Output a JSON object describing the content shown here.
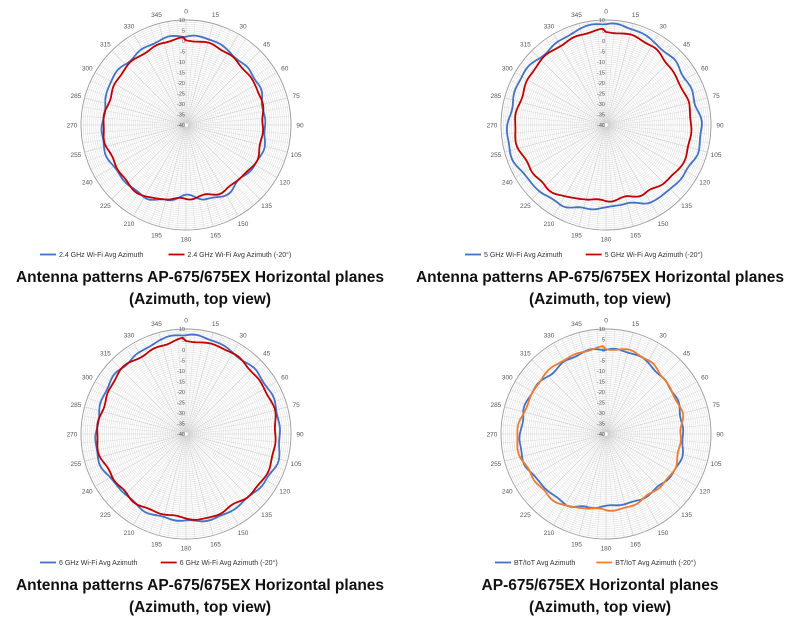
{
  "chart_data": [
    {
      "type": "polar-line",
      "title": "Antenna patterns AP-675/675EX Horizontal planes",
      "subtitle": "(Azimuth, top view)",
      "angular_ticks": [
        "0",
        "15",
        "30",
        "45",
        "60",
        "75",
        "90",
        "105",
        "120",
        "135",
        "150",
        "165",
        "180",
        "195",
        "210",
        "225",
        "240",
        "255",
        "270",
        "285",
        "300",
        "315",
        "330",
        "345"
      ],
      "radial_ticks": [
        "10",
        "5",
        "0",
        "-5",
        "-10",
        "-15",
        "-20",
        "-25",
        "-30",
        "-35",
        "-40"
      ],
      "rlim": [
        -40,
        10
      ],
      "series": [
        {
          "name": "2.4 GHz Wi-Fi Avg Azimuth",
          "color": "#4472C4",
          "angles": [
            0,
            15,
            30,
            45,
            60,
            75,
            90,
            105,
            120,
            135,
            150,
            165,
            180,
            195,
            210,
            225,
            240,
            255,
            270,
            285,
            300,
            315,
            330,
            345
          ],
          "values": [
            2,
            2,
            1,
            0,
            -1,
            -2,
            -2,
            -2,
            -2,
            -3,
            -2,
            -4,
            -6,
            -3,
            -1,
            0,
            0,
            0,
            0,
            0,
            1,
            1,
            2,
            2
          ]
        },
        {
          "name": "2.4 GHz Wi-Fi Avg Azimuth (-20°)",
          "color": "#C00000",
          "angles": [
            0,
            15,
            30,
            45,
            60,
            75,
            90,
            105,
            120,
            135,
            150,
            165,
            180,
            195,
            210,
            225,
            240,
            255,
            270,
            285,
            300,
            315,
            330,
            345
          ],
          "values": [
            1,
            0,
            -1,
            -1,
            -2,
            -3,
            -3,
            -3,
            -3,
            -4,
            -3,
            -6,
            -5,
            -3,
            -1,
            -1,
            -1,
            -1,
            -1,
            -1,
            -1,
            -1,
            0,
            1
          ]
        }
      ]
    },
    {
      "type": "polar-line",
      "title": "Antenna patterns AP-675/675EX Horizontal planes",
      "subtitle": "(Azimuth, top view)",
      "angular_ticks": [
        "0",
        "15",
        "30",
        "45",
        "60",
        "75",
        "90",
        "105",
        "120",
        "135",
        "150",
        "165",
        "180",
        "195",
        "210",
        "225",
        "240",
        "255",
        "270",
        "285",
        "300",
        "315",
        "330",
        "345"
      ],
      "radial_ticks": [
        "10",
        "5",
        "0",
        "-5",
        "-10",
        "-15",
        "-20",
        "-25",
        "-30",
        "-35",
        "-40"
      ],
      "rlim": [
        -40,
        10
      ],
      "series": [
        {
          "name": "5 GHz Wi-Fi Avg Azimuth",
          "color": "#4472C4",
          "angles": [
            0,
            15,
            30,
            45,
            60,
            75,
            90,
            105,
            120,
            135,
            150,
            165,
            180,
            195,
            210,
            225,
            240,
            255,
            270,
            285,
            300,
            315,
            330,
            345
          ],
          "values": [
            8,
            7,
            6,
            5,
            3,
            4,
            6,
            5,
            4,
            4,
            2,
            -2,
            0,
            1,
            3,
            5,
            6,
            7,
            7,
            6,
            6,
            5,
            6,
            7
          ]
        },
        {
          "name": "5 GHz Wi-Fi Avg Azimuth (-20°)",
          "color": "#C00000",
          "angles": [
            0,
            15,
            30,
            45,
            60,
            75,
            90,
            105,
            120,
            135,
            150,
            165,
            180,
            195,
            210,
            225,
            240,
            255,
            270,
            285,
            300,
            315,
            330,
            345
          ],
          "values": [
            5,
            4,
            3,
            2,
            0,
            0,
            1,
            1,
            0,
            -1,
            -2,
            -5,
            -4,
            -3,
            -1,
            1,
            2,
            3,
            3,
            3,
            3,
            3,
            4,
            5
          ]
        }
      ]
    },
    {
      "type": "polar-line",
      "title": "Antenna patterns AP-675/675EX Horizontal planes",
      "subtitle": "(Azimuth, top view)",
      "angular_ticks": [
        "0",
        "15",
        "30",
        "45",
        "60",
        "75",
        "90",
        "105",
        "120",
        "135",
        "150",
        "165",
        "180",
        "195",
        "210",
        "225",
        "240",
        "255",
        "270",
        "285",
        "300",
        "315",
        "330",
        "345"
      ],
      "radial_ticks": [
        "10",
        "5",
        "0",
        "-5",
        "-10",
        "-15",
        "-20",
        "-25",
        "-30",
        "-35",
        "-40"
      ],
      "rlim": [
        -40,
        10
      ],
      "series": [
        {
          "name": "6 GHz Wi-Fi Avg Azimuth",
          "color": "#4472C4",
          "angles": [
            0,
            15,
            30,
            45,
            60,
            75,
            90,
            105,
            120,
            135,
            150,
            165,
            180,
            195,
            210,
            225,
            240,
            255,
            270,
            285,
            300,
            315,
            330,
            345
          ],
          "values": [
            7,
            6,
            5,
            5,
            4,
            5,
            5,
            5,
            4,
            3,
            2,
            2,
            2,
            1,
            1,
            1,
            2,
            3,
            3,
            3,
            3,
            4,
            5,
            6
          ]
        },
        {
          "name": "6 GHz Wi-Fi Avg Azimuth (-20°)",
          "color": "#C00000",
          "angles": [
            0,
            15,
            30,
            45,
            60,
            75,
            90,
            105,
            120,
            135,
            150,
            165,
            180,
            195,
            210,
            225,
            240,
            255,
            270,
            285,
            300,
            315,
            330,
            345
          ],
          "values": [
            5,
            4,
            4,
            4,
            3,
            3,
            3,
            3,
            2,
            2,
            1,
            1,
            0,
            0,
            0,
            0,
            1,
            2,
            2,
            2,
            2,
            3,
            3,
            4
          ]
        }
      ]
    },
    {
      "type": "polar-line",
      "title": "AP-675/675EX Horizontal planes",
      "subtitle": "(Azimuth, top view)",
      "angular_ticks": [
        "0",
        "15",
        "30",
        "45",
        "60",
        "75",
        "90",
        "105",
        "120",
        "135",
        "150",
        "165",
        "180",
        "195",
        "210",
        "225",
        "240",
        "255",
        "270",
        "285",
        "300",
        "315",
        "330",
        "345"
      ],
      "radial_ticks": [
        "10",
        "5",
        "0",
        "-5",
        "-10",
        "-15",
        "-20",
        "-25",
        "-30",
        "-35",
        "-40"
      ],
      "rlim": [
        -40,
        10
      ],
      "series": [
        {
          "name": "BT/IoT Avg Azimuth",
          "color": "#4472C4",
          "angles": [
            0,
            15,
            30,
            45,
            60,
            75,
            90,
            105,
            120,
            135,
            150,
            165,
            180,
            195,
            210,
            225,
            240,
            255,
            270,
            285,
            300,
            315,
            330,
            345
          ],
          "values": [
            0,
            0,
            0,
            -2,
            -3,
            -3,
            -3,
            -3,
            -3,
            -4,
            -5,
            -6,
            -5,
            -4,
            -2,
            -1,
            0,
            1,
            1,
            1,
            0,
            -1,
            0,
            0
          ]
        },
        {
          "name": "BT/IoT Avg Azimuth (-20°)",
          "color": "#ED7D31",
          "angles": [
            0,
            15,
            30,
            45,
            60,
            75,
            90,
            105,
            120,
            135,
            150,
            165,
            180,
            195,
            210,
            225,
            240,
            255,
            270,
            285,
            300,
            315,
            330,
            345
          ],
          "values": [
            1,
            1,
            0,
            -1,
            -3,
            -3,
            -4,
            -4,
            -4,
            -4,
            -4,
            -4,
            -4,
            -3,
            -1,
            0,
            1,
            2,
            2,
            1,
            0,
            0,
            1,
            1
          ]
        }
      ]
    }
  ]
}
